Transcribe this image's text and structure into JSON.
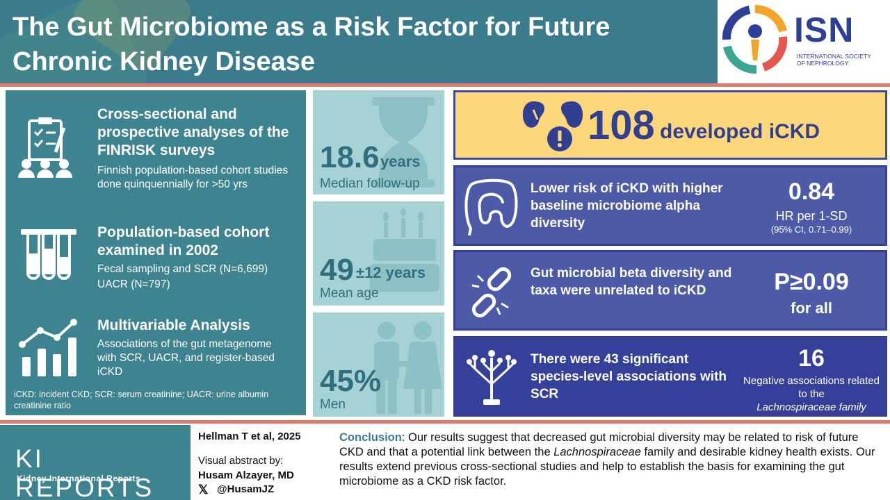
{
  "header": {
    "title_line1": "The Gut Microbiome as a Risk Factor for Future",
    "title_line2": "Chronic Kidney Disease",
    "logo_text": "ISN",
    "logo_sub_line1": "INTERNATIONAL SOCIETY",
    "logo_sub_line2": "OF NEPHROLOGY"
  },
  "left": {
    "items": [
      {
        "title": "Cross-sectional and prospective analyses of the FINRISK surveys",
        "text": "Finnish population-based cohort studies done quinquennially for >50 yrs",
        "icon": "clipboard-people-icon"
      },
      {
        "title": "Population-based cohort examined in 2002",
        "text_line1": "Fecal sampling and SCR (N=6,699)",
        "text_line2": "UACR (N=797)",
        "icon": "test-tubes-icon"
      },
      {
        "title": "Multivariable Analysis",
        "text": "Associations of the gut metagenome with SCR, UACR, and register-based iCKD",
        "icon": "bar-chart-icon"
      }
    ],
    "footnote": "iCKD: incident CKD; SCR: serum creatinine; UACR: urine albumin creatinine ratio"
  },
  "stats": [
    {
      "value": "18.6",
      "unit": "years",
      "label": "Median follow-up",
      "icon": "hourglass-icon"
    },
    {
      "value": "49",
      "unit": "±12 years",
      "label": "Mean age",
      "icon": "cake-icon"
    },
    {
      "value": "45%",
      "unit": "",
      "label": "Men",
      "icon": "couple-icon"
    }
  ],
  "highlight": {
    "number": "108",
    "text": "developed iCKD",
    "icon": "kidneys-warning-icon"
  },
  "findings": [
    {
      "desc": "Lower risk of iCKD with higher baseline microbiome alpha diversity",
      "value": "0.84",
      "sub1": "HR per 1-SD",
      "sub2": "(95% CI, 0.71–0.99)",
      "icon": "intestine-icon"
    },
    {
      "desc": "Gut microbial beta diversity and taxa were unrelated to iCKD",
      "value": "P≥0.09",
      "sub1": "for all",
      "icon": "broken-chain-icon"
    },
    {
      "desc": "There were 43 significant species-level associations with SCR",
      "value": "16",
      "sub1": "Negative associations related to the",
      "sub2": "Lachnospiraceae family",
      "icon": "tree-icon"
    }
  ],
  "footer": {
    "journal": "KI REPORTS",
    "journal_sub": "Kidney International Reports",
    "citation": "Hellman T et al, 2025",
    "visual_by": "Visual abstract by:",
    "author": "Husam Alzayer, MD",
    "handle": "@HusamJZ",
    "conclusion_head": "Conclusion",
    "conclusion_a": ": Our results suggest that decreased gut microbial diversity may be related to risk of future CKD and that a potential link between the ",
    "conclusion_em": "Lachnospiraceae",
    "conclusion_b": " family and desirable kidney health exists. Our results extend previous cross-sectional studies and help to establish the basis for examining the gut microbiome as a CKD risk factor."
  },
  "colors": {
    "teal": "#3b7c8c",
    "light_teal": "#a7d2d5",
    "coral": "#e07b6b",
    "yellow": "#fdd77a",
    "indigo": "#35409a"
  }
}
